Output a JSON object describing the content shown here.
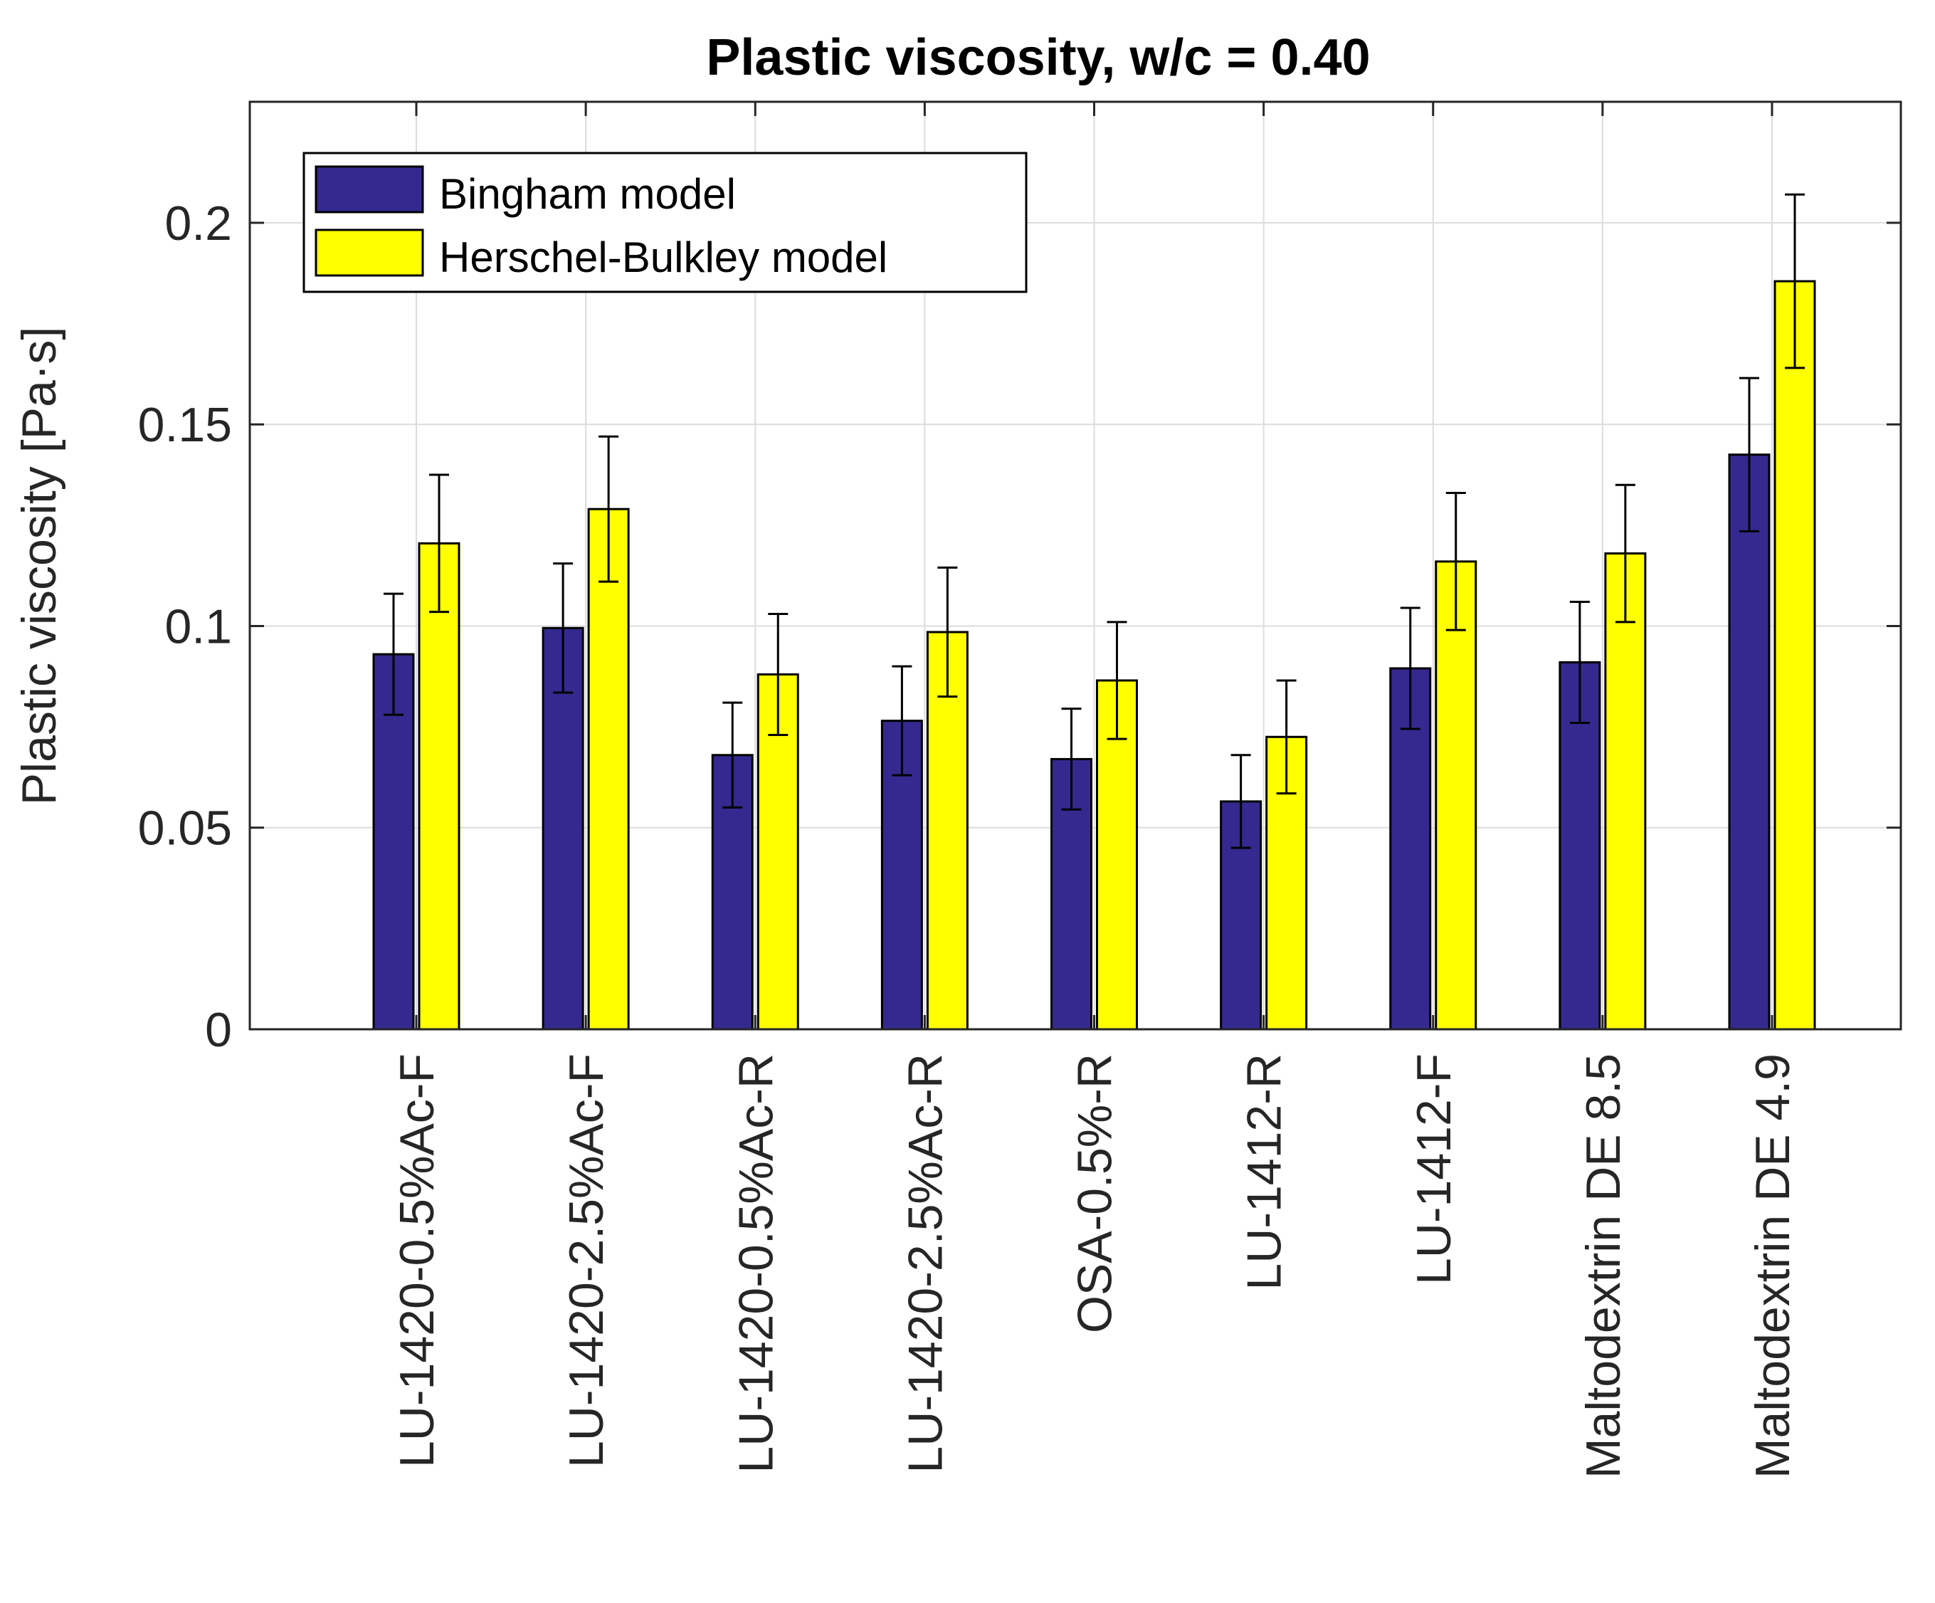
{
  "chart_data": {
    "type": "bar",
    "title": "Plastic viscosity, w/c = 0.40",
    "xlabel": "",
    "ylabel": "Plastic viscosity [Pa·s]",
    "ylim": [
      0,
      0.23
    ],
    "yticks": [
      0,
      0.05,
      0.1,
      0.15,
      0.2
    ],
    "ytick_labels": [
      "0",
      "0.05",
      "0.1",
      "0.15",
      "0.2"
    ],
    "grid": true,
    "legend_position": "top-left",
    "categories": [
      "LU-1420-0.5%Ac-F",
      "LU-1420-2.5%Ac-F",
      "LU-1420-0.5%Ac-R",
      "LU-1420-2.5%Ac-R",
      "OSA-0.5%-R",
      "LU-1412-R",
      "LU-1412-F",
      "Maltodextrin DE 8.5",
      "Maltodextrin DE 4.9"
    ],
    "series": [
      {
        "name": "Bingham model",
        "color": "#35298f",
        "values": [
          0.093,
          0.0995,
          0.068,
          0.0765,
          0.067,
          0.0565,
          0.0895,
          0.091,
          0.1425
        ],
        "error": [
          0.015,
          0.016,
          0.013,
          0.0135,
          0.0125,
          0.0115,
          0.015,
          0.015,
          0.019
        ]
      },
      {
        "name": "Herschel-Bulkley model",
        "color": "#ffff00",
        "values": [
          0.1205,
          0.129,
          0.088,
          0.0985,
          0.0865,
          0.0725,
          0.116,
          0.118,
          0.1855
        ],
        "error": [
          0.017,
          0.018,
          0.015,
          0.016,
          0.0145,
          0.014,
          0.017,
          0.017,
          0.0215
        ]
      }
    ]
  }
}
